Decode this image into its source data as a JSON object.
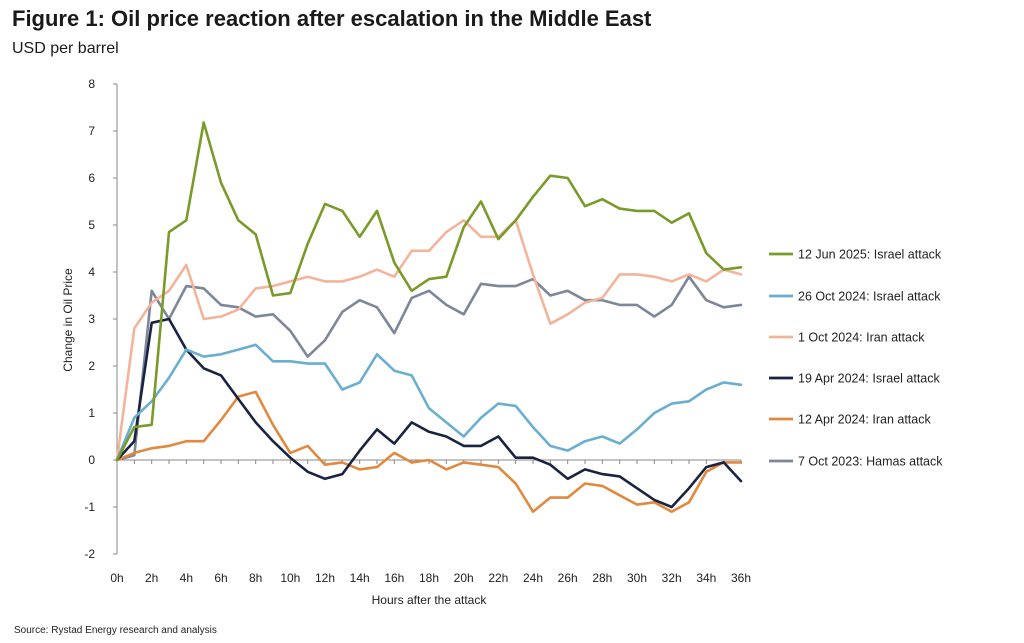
{
  "header": {
    "title": "Figure 1: Oil price reaction after escalation in the Middle East",
    "subtitle": "USD per barrel"
  },
  "footer": {
    "source": "Source: Rystad Energy research and analysis"
  },
  "chart_data": {
    "type": "line",
    "xlabel": "Hours after the attack",
    "ylabel": "Change in Oil Price",
    "ylim": [
      -2,
      8
    ],
    "yticks": [
      -2,
      -1,
      0,
      1,
      2,
      3,
      4,
      5,
      6,
      7,
      8
    ],
    "x": [
      0,
      1,
      2,
      3,
      4,
      5,
      6,
      7,
      8,
      9,
      10,
      11,
      12,
      13,
      14,
      15,
      16,
      17,
      18,
      19,
      20,
      21,
      22,
      23,
      24,
      25,
      26,
      27,
      28,
      29,
      30,
      31,
      32,
      33,
      34,
      35,
      36
    ],
    "xtick_labels": [
      "0h",
      "2h",
      "4h",
      "6h",
      "8h",
      "10h",
      "12h",
      "14h",
      "16h",
      "18h",
      "20h",
      "22h",
      "24h",
      "26h",
      "28h",
      "30h",
      "32h",
      "34h",
      "36h"
    ],
    "xtick_positions": [
      0,
      2,
      4,
      6,
      8,
      10,
      12,
      14,
      16,
      18,
      20,
      22,
      24,
      26,
      28,
      30,
      32,
      34,
      36
    ],
    "grid": false,
    "legend_position": "right",
    "series": [
      {
        "name": "12 Jun 2025: Israel attack",
        "color": "#7a9a2a",
        "values": [
          0.0,
          0.7,
          0.75,
          4.85,
          5.1,
          7.18,
          5.9,
          5.1,
          4.8,
          3.5,
          3.55,
          4.6,
          5.45,
          5.3,
          4.75,
          5.3,
          4.2,
          3.6,
          3.85,
          3.9,
          4.95,
          5.5,
          4.7,
          5.1,
          5.6,
          6.05,
          6.0,
          5.4,
          5.55,
          5.35,
          5.3,
          5.3,
          5.05,
          5.25,
          4.4,
          4.05,
          4.1
        ]
      },
      {
        "name": "26 Oct 2024: Israel attack",
        "color": "#6aaed0",
        "values": [
          0.0,
          0.9,
          1.25,
          1.75,
          2.35,
          2.2,
          2.25,
          2.35,
          2.45,
          2.1,
          2.1,
          2.05,
          2.05,
          1.5,
          1.65,
          2.25,
          1.9,
          1.8,
          1.1,
          0.8,
          0.5,
          0.9,
          1.2,
          1.15,
          0.7,
          0.3,
          0.2,
          0.4,
          0.5,
          0.35,
          0.65,
          1.0,
          1.2,
          1.25,
          1.5,
          1.65,
          1.6
        ]
      },
      {
        "name": "1 Oct 2024: Iran attack",
        "color": "#f2b49a",
        "values": [
          0.0,
          2.8,
          3.35,
          3.6,
          4.15,
          3.0,
          3.05,
          3.2,
          3.65,
          3.7,
          3.8,
          3.9,
          3.8,
          3.8,
          3.9,
          4.05,
          3.9,
          4.45,
          4.45,
          4.85,
          5.1,
          4.75,
          4.75,
          5.1,
          3.95,
          2.9,
          3.1,
          3.35,
          3.45,
          3.95,
          3.95,
          3.9,
          3.8,
          3.95,
          3.8,
          4.05,
          3.95
        ]
      },
      {
        "name": "19 Apr 2024: Israel attack",
        "color": "#1a2340",
        "values": [
          0.0,
          0.4,
          2.92,
          3.0,
          2.35,
          1.95,
          1.8,
          1.3,
          0.8,
          0.4,
          0.05,
          -0.25,
          -0.4,
          -0.3,
          0.2,
          0.65,
          0.35,
          0.8,
          0.6,
          0.5,
          0.3,
          0.3,
          0.5,
          0.05,
          0.05,
          -0.1,
          -0.4,
          -0.2,
          -0.3,
          -0.35,
          -0.6,
          -0.85,
          -1.0,
          -0.6,
          -0.15,
          -0.05,
          -0.45
        ]
      },
      {
        "name": "12 Apr 2024: Iran attack",
        "color": "#e08a40",
        "values": [
          0.0,
          0.15,
          0.25,
          0.3,
          0.4,
          0.4,
          0.85,
          1.35,
          1.45,
          0.75,
          0.15,
          0.3,
          -0.1,
          -0.05,
          -0.2,
          -0.15,
          0.15,
          -0.05,
          0.0,
          -0.2,
          -0.05,
          -0.1,
          -0.15,
          -0.5,
          -1.1,
          -0.8,
          -0.8,
          -0.5,
          -0.55,
          -0.75,
          -0.95,
          -0.9,
          -1.1,
          -0.9,
          -0.25,
          -0.05,
          -0.05
        ]
      },
      {
        "name": "7 Oct 2023: Hamas attack",
        "color": "#7d8799",
        "values": [
          0.0,
          0.1,
          3.6,
          3.0,
          3.7,
          3.65,
          3.3,
          3.25,
          3.05,
          3.1,
          2.75,
          2.2,
          2.55,
          3.15,
          3.4,
          3.25,
          2.7,
          3.45,
          3.6,
          3.3,
          3.1,
          3.75,
          3.7,
          3.7,
          3.85,
          3.5,
          3.6,
          3.4,
          3.4,
          3.3,
          3.3,
          3.05,
          3.3,
          3.9,
          3.4,
          3.25,
          3.3
        ]
      }
    ]
  }
}
